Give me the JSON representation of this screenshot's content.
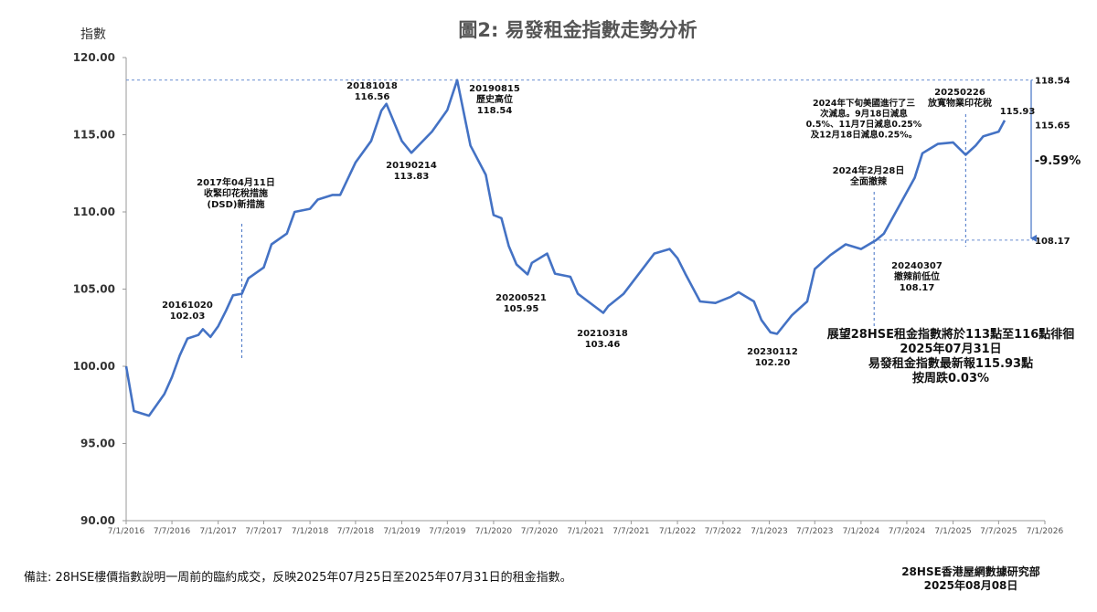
{
  "chart_data": {
    "type": "line",
    "title": "圖2: 易發租金指數走勢分析",
    "y_label": "指數",
    "xlim": [
      "2016-01-07",
      "2026-01-07"
    ],
    "xticks": [
      {
        "value": "2016-01-07",
        "label": "7/1/2016"
      },
      {
        "value": "2016-07-07",
        "label": "7/7/2016"
      },
      {
        "value": "2017-01-07",
        "label": "7/1/2017"
      },
      {
        "value": "2017-07-07",
        "label": "7/7/2017"
      },
      {
        "value": "2018-01-07",
        "label": "7/1/2018"
      },
      {
        "value": "2018-07-07",
        "label": "7/7/2018"
      },
      {
        "value": "2019-01-07",
        "label": "7/1/2019"
      },
      {
        "value": "2019-07-07",
        "label": "7/7/2019"
      },
      {
        "value": "2020-01-07",
        "label": "7/1/2020"
      },
      {
        "value": "2020-07-07",
        "label": "7/7/2020"
      },
      {
        "value": "2021-01-07",
        "label": "7/1/2021"
      },
      {
        "value": "2021-07-07",
        "label": "7/7/2021"
      },
      {
        "value": "2022-01-07",
        "label": "7/1/2022"
      },
      {
        "value": "2022-07-07",
        "label": "7/7/2022"
      },
      {
        "value": "2023-01-07",
        "label": "7/1/2023"
      },
      {
        "value": "2023-07-07",
        "label": "7/7/2023"
      },
      {
        "value": "2024-01-07",
        "label": "7/1/2024"
      },
      {
        "value": "2024-07-07",
        "label": "7/7/2024"
      },
      {
        "value": "2025-01-07",
        "label": "7/1/2025"
      },
      {
        "value": "2025-07-07",
        "label": "7/7/2025"
      },
      {
        "value": "2026-01-07",
        "label": "7/1/2026"
      }
    ],
    "ylim": [
      90,
      120
    ],
    "yticks": [
      {
        "value": 90,
        "label": "90.00"
      },
      {
        "value": 95,
        "label": "95.00"
      },
      {
        "value": 100,
        "label": "100.00"
      },
      {
        "value": 105,
        "label": "105.00"
      },
      {
        "value": 110,
        "label": "110.00"
      },
      {
        "value": 115,
        "label": "115.00"
      },
      {
        "value": 120,
        "label": "120.00"
      }
    ],
    "series": [
      {
        "name": "易發租金指數",
        "color": "#4472c4",
        "x": [
          "2016-01-07",
          "2016-02-07",
          "2016-04-07",
          "2016-06-07",
          "2016-07-07",
          "2016-08-07",
          "2016-09-07",
          "2016-10-20",
          "2016-11-07",
          "2016-12-07",
          "2017-01-07",
          "2017-02-07",
          "2017-03-07",
          "2017-04-11",
          "2017-05-07",
          "2017-07-07",
          "2017-08-07",
          "2017-10-07",
          "2017-11-07",
          "2018-01-07",
          "2018-02-07",
          "2018-04-07",
          "2018-05-07",
          "2018-07-07",
          "2018-09-07",
          "2018-10-18",
          "2018-11-07",
          "2019-01-07",
          "2019-02-14",
          "2019-05-07",
          "2019-07-07",
          "2019-08-15",
          "2019-09-07",
          "2019-10-07",
          "2019-12-07",
          "2020-01-07",
          "2020-02-07",
          "2020-03-07",
          "2020-04-07",
          "2020-05-21",
          "2020-06-07",
          "2020-08-07",
          "2020-09-07",
          "2020-11-07",
          "2020-12-07",
          "2021-03-18",
          "2021-04-07",
          "2021-06-07",
          "2021-08-07",
          "2021-10-07",
          "2021-12-07",
          "2022-01-07",
          "2022-02-07",
          "2022-04-07",
          "2022-06-07",
          "2022-08-07",
          "2022-09-07",
          "2022-11-07",
          "2022-12-07",
          "2023-01-12",
          "2023-02-07",
          "2023-04-07",
          "2023-06-07",
          "2023-07-07",
          "2023-09-07",
          "2023-11-07",
          "2024-01-07",
          "2024-03-07",
          "2024-04-07",
          "2024-06-07",
          "2024-08-07",
          "2024-09-07",
          "2024-11-07",
          "2025-01-07",
          "2025-02-26",
          "2025-04-07",
          "2025-05-07",
          "2025-07-07",
          "2025-07-31"
        ],
        "values": [
          100.0,
          97.1,
          96.8,
          98.2,
          99.3,
          100.7,
          101.8,
          102.03,
          102.4,
          101.9,
          102.6,
          103.6,
          104.6,
          104.7,
          105.7,
          106.4,
          107.9,
          108.6,
          110.0,
          110.2,
          110.8,
          111.1,
          111.1,
          113.2,
          114.6,
          116.56,
          117.0,
          114.6,
          113.83,
          115.2,
          116.6,
          118.54,
          116.7,
          114.3,
          112.4,
          109.8,
          109.6,
          107.8,
          106.6,
          105.95,
          106.7,
          107.3,
          106.0,
          105.8,
          104.7,
          103.46,
          103.9,
          104.7,
          106.0,
          107.3,
          107.6,
          107.0,
          106.0,
          104.2,
          104.1,
          104.5,
          104.8,
          104.2,
          103.0,
          102.2,
          102.1,
          103.3,
          104.2,
          106.3,
          107.2,
          107.9,
          107.6,
          108.17,
          108.6,
          110.4,
          112.2,
          113.8,
          114.4,
          114.5,
          113.7,
          114.3,
          114.9,
          115.2,
          115.93
        ]
      }
    ],
    "hlines": [
      118.54,
      108.17
    ],
    "vlines": [
      "2017-04-11",
      "2024-02-28",
      "2025-02-26"
    ],
    "right_labels": [
      118.54,
      115.65,
      108.17
    ],
    "annotations": [
      {
        "lines": [
          "20161020",
          "102.03"
        ]
      },
      {
        "lines": [
          "2017年04月11日",
          "收緊印花稅措施",
          "(DSD)新措施"
        ]
      },
      {
        "lines": [
          "20181018",
          "116.56"
        ]
      },
      {
        "lines": [
          "20190214",
          "113.83"
        ]
      },
      {
        "lines": [
          "20190815",
          "歷史高位",
          "118.54"
        ]
      },
      {
        "lines": [
          "20200521",
          "105.95"
        ]
      },
      {
        "lines": [
          "20210318",
          "103.46"
        ]
      },
      {
        "lines": [
          "20230112",
          "102.20"
        ]
      },
      {
        "lines": [
          "2024年下旬美國進行了三",
          "次減息。9月18日減息",
          "0.5%、11月7日減息0.25%",
          "及12月18日減息0.25%。"
        ]
      },
      {
        "lines": [
          "2024年2月28日",
          "全面撤辣"
        ]
      },
      {
        "lines": [
          "20240307",
          "撤辣前低位",
          "108.17"
        ]
      },
      {
        "lines": [
          "20250226",
          "放寬物業印花稅"
        ]
      },
      {
        "lines": [
          "115.93"
        ]
      },
      {
        "lines": [
          "-9.59%"
        ]
      },
      {
        "lines": [
          "展望28HSE租金指數將於113點至116點徘徊",
          "2025年07月31日",
          "易發租金指數最新報115.93點",
          "按周跌0.03%"
        ]
      }
    ],
    "footnote": "備註: 28HSE樓價指數說明一周前的臨約成交，反映2025年07月25日至2025年07月31日的租金指數。",
    "source": "28HSE香港屋網數據研究部",
    "date": "2025年08月08日"
  }
}
